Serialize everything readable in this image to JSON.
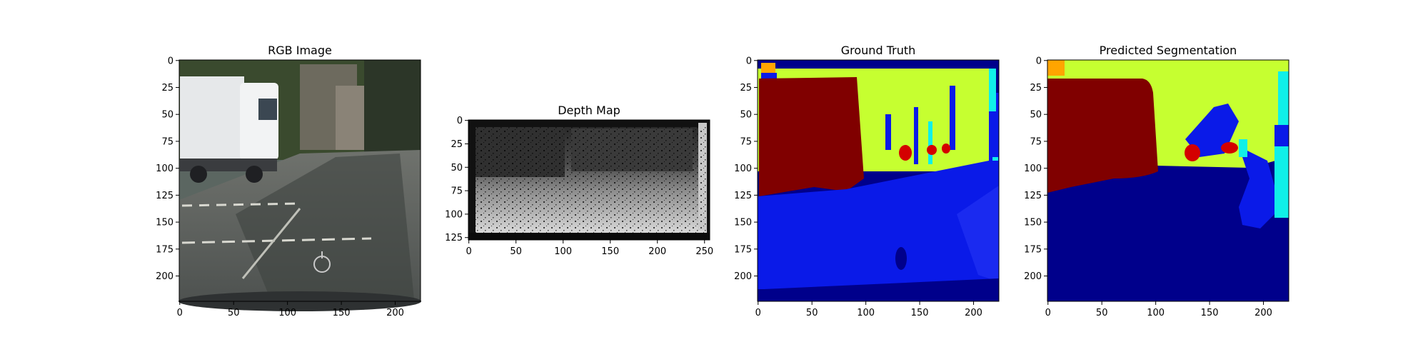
{
  "figure": {
    "panels": [
      {
        "title": "RGB Image",
        "x_ticks": [
          "0",
          "50",
          "100",
          "150",
          "200"
        ],
        "y_ticks": [
          "0",
          "25",
          "50",
          "75",
          "100",
          "125",
          "150",
          "175",
          "200"
        ]
      },
      {
        "title": "Depth Map",
        "x_ticks": [
          "0",
          "50",
          "100",
          "150",
          "200",
          "250"
        ],
        "y_ticks": [
          "0",
          "25",
          "50",
          "75",
          "100",
          "125"
        ]
      },
      {
        "title": "Ground Truth",
        "x_ticks": [
          "0",
          "50",
          "100",
          "150",
          "200"
        ],
        "y_ticks": [
          "0",
          "25",
          "50",
          "75",
          "100",
          "125",
          "150",
          "175",
          "200"
        ]
      },
      {
        "title": "Predicted Segmentation",
        "x_ticks": [
          "0",
          "50",
          "100",
          "150",
          "200"
        ],
        "y_ticks": [
          "0",
          "25",
          "50",
          "75",
          "100",
          "125",
          "150",
          "175",
          "200"
        ]
      }
    ],
    "colors": {
      "sky_yellowgreen": "#c6ff30",
      "vehicle_darkred": "#800000",
      "road_navy": "#00008b",
      "sidewalk_blue": "#0a1ae8",
      "person_red": "#d40000",
      "cyan": "#10f0e8",
      "orange": "#ffa500"
    }
  }
}
